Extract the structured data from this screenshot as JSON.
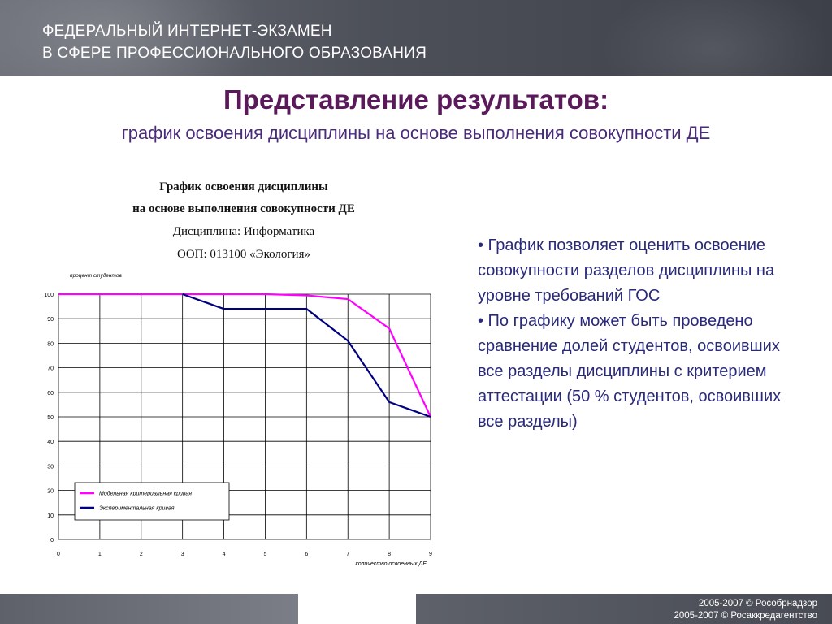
{
  "header": {
    "line1": "ФЕДЕРАЛЬНЫЙ ИНТЕРНЕТ-ЭКЗАМЕН",
    "line2": "В СФЕРЕ ПРОФЕССИОНАЛЬНОГО ОБРАЗОВАНИЯ"
  },
  "slide": {
    "title": "Представление результатов:",
    "subtitle": "график освоения дисциплины на основе выполнения совокупности ДЕ"
  },
  "chart_data": {
    "type": "line",
    "title": "График освоения дисциплины",
    "title2": "на основе выполнения совокупности ДЕ",
    "subtitle1": "Дисциплина: Информатика",
    "subtitle2": "ООП: 013100 «Экология»",
    "xlabel": "количество освоенных ДЕ",
    "ylabel": "процент студентов",
    "x": [
      0,
      1,
      2,
      3,
      4,
      5,
      6,
      7,
      8,
      9
    ],
    "xlim": [
      0,
      9
    ],
    "ylim": [
      0,
      100
    ],
    "x_ticks": [
      "0",
      "1",
      "2",
      "3",
      "4",
      "5",
      "6",
      "7",
      "8",
      "9"
    ],
    "y_ticks": [
      "0",
      "10",
      "20",
      "30",
      "40",
      "50",
      "60",
      "70",
      "80",
      "90",
      "100"
    ],
    "grid": true,
    "legend_position": "bottom-left",
    "series": [
      {
        "name": "Модельная критериальная кривая",
        "color": "#ff00ff",
        "values": [
          100,
          100,
          100,
          100,
          100,
          100,
          99.5,
          98,
          86,
          50
        ]
      },
      {
        "name": "Экспериментальная кривая",
        "color": "#000080",
        "values": [
          null,
          null,
          null,
          100,
          94,
          94,
          94,
          81,
          56,
          50
        ]
      }
    ]
  },
  "bullets": [
    "• График позволяет оценить освоение совокупности разделов дисциплины на уровне требований ГОС",
    "•  По графику может быть проведено сравнение долей студентов, освоивших все разделы дисциплины с критерием аттестации (50 % студентов, освоивших все разделы)"
  ],
  "footer": {
    "copy1": "2005-2007 © Рособрнадзор",
    "copy2": "2005-2007 © Росаккредагентство"
  }
}
